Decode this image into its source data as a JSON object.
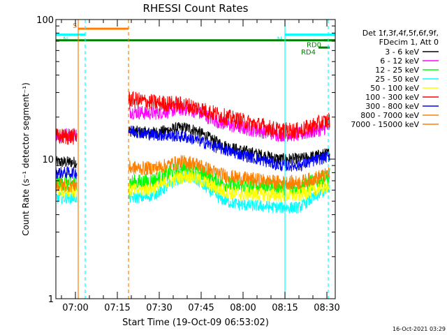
{
  "chart_data": {
    "type": "line",
    "title": "RHESSI Count Rates",
    "xlabel": "Start Time (19-Oct-09 06:53:02)",
    "ylabel": "Count Rate (s⁻¹ detector segment⁻¹)",
    "yscale": "log",
    "ylim": [
      1,
      100
    ],
    "xlim_minutes_after_06_53": [
      0,
      100
    ],
    "x_tick_labels": [
      "07:00",
      "07:15",
      "07:30",
      "07:45",
      "08:00",
      "08:15",
      "08:30"
    ],
    "y_tick_labels": [
      "1",
      "10",
      "100"
    ],
    "legend_header": [
      "Det 1f,3f,4f,5f,6f,9f,",
      "FDecim 1, Att 0"
    ],
    "legend_position": "right",
    "series": [
      {
        "name": "3 - 6 keV",
        "color": "#000000",
        "levels": {
          "pre": 9.5,
          "start": 16,
          "hump": 16,
          "late": 10,
          "end": 11
        }
      },
      {
        "name": "6 - 12 keV",
        "color": "#ff00ff",
        "levels": {
          "pre": 15,
          "start": 22,
          "hump": 22,
          "late": 15,
          "end": 17
        }
      },
      {
        "name": "12 - 25 keV",
        "color": "#00ff00",
        "levels": {
          "pre": 6.8,
          "start": 6.8,
          "hump": 8.5,
          "late": 6.3,
          "end": 7.5
        }
      },
      {
        "name": "25 - 50 keV",
        "color": "#00ffff",
        "levels": {
          "pre": 5.3,
          "start": 5.3,
          "hump": 7.3,
          "late": 4.5,
          "end": 6.2
        }
      },
      {
        "name": "50 - 100 keV",
        "color": "#ffff00",
        "levels": {
          "pre": 6,
          "start": 6,
          "hump": 7.5,
          "late": 5.5,
          "end": 6.5
        }
      },
      {
        "name": "100 - 300 keV",
        "color": "#ff0000",
        "levels": {
          "pre": 14.5,
          "start": 27,
          "hump": 23,
          "late": 16,
          "end": 19
        }
      },
      {
        "name": "300 - 800 keV",
        "color": "#0000ff",
        "levels": {
          "pre": 8,
          "start": 16,
          "hump": 13.5,
          "late": 9,
          "end": 10.5
        }
      },
      {
        "name": "800 - 7000 keV",
        "color": "#ff8000",
        "levels": {
          "pre": 6.5,
          "start": 8.7,
          "hump": 9.3,
          "late": 6.8,
          "end": 7.8
        }
      },
      {
        "name": "7000 - 15000 keV",
        "color": "#ff8000",
        "levels": {}
      }
    ],
    "segments": {
      "pre_start_min": 0,
      "pre_end_min": 7.5,
      "main_start_min": 26,
      "main_end_min": 98
    },
    "events": [
      {
        "label": "S",
        "color": "#ff8000",
        "start_min": 8,
        "end_min": 26,
        "level": 86
      },
      {
        "label": "N",
        "color": "#00ffff",
        "start_min": 0,
        "end_min": 10.5,
        "level": 78
      },
      {
        "label": "N",
        "color": "#00ffff",
        "start_min": 82,
        "end_min": 100,
        "level": 78
      },
      {
        "label": "",
        "color": "#008000",
        "start_min": 0,
        "end_min": 100,
        "level": 71
      },
      {
        "label": "RD0",
        "color": "#008000",
        "start_min": 96,
        "end_min": 100,
        "level": 71
      },
      {
        "label": "RD4",
        "color": "#008000",
        "start_min": 94,
        "end_min": 98,
        "level": 63
      }
    ],
    "vlines": [
      {
        "min": 8,
        "color": "#ff8000",
        "dashed": false
      },
      {
        "min": 10.5,
        "color": "#00ffff",
        "dashed": true
      },
      {
        "min": 26,
        "color": "#ff8000",
        "dashed": true
      },
      {
        "min": 82,
        "color": "#00ffff",
        "dashed": false
      },
      {
        "min": 97.5,
        "color": "#00ffff",
        "dashed": true
      }
    ],
    "footer_date": "16-Oct-2021 03:29"
  }
}
